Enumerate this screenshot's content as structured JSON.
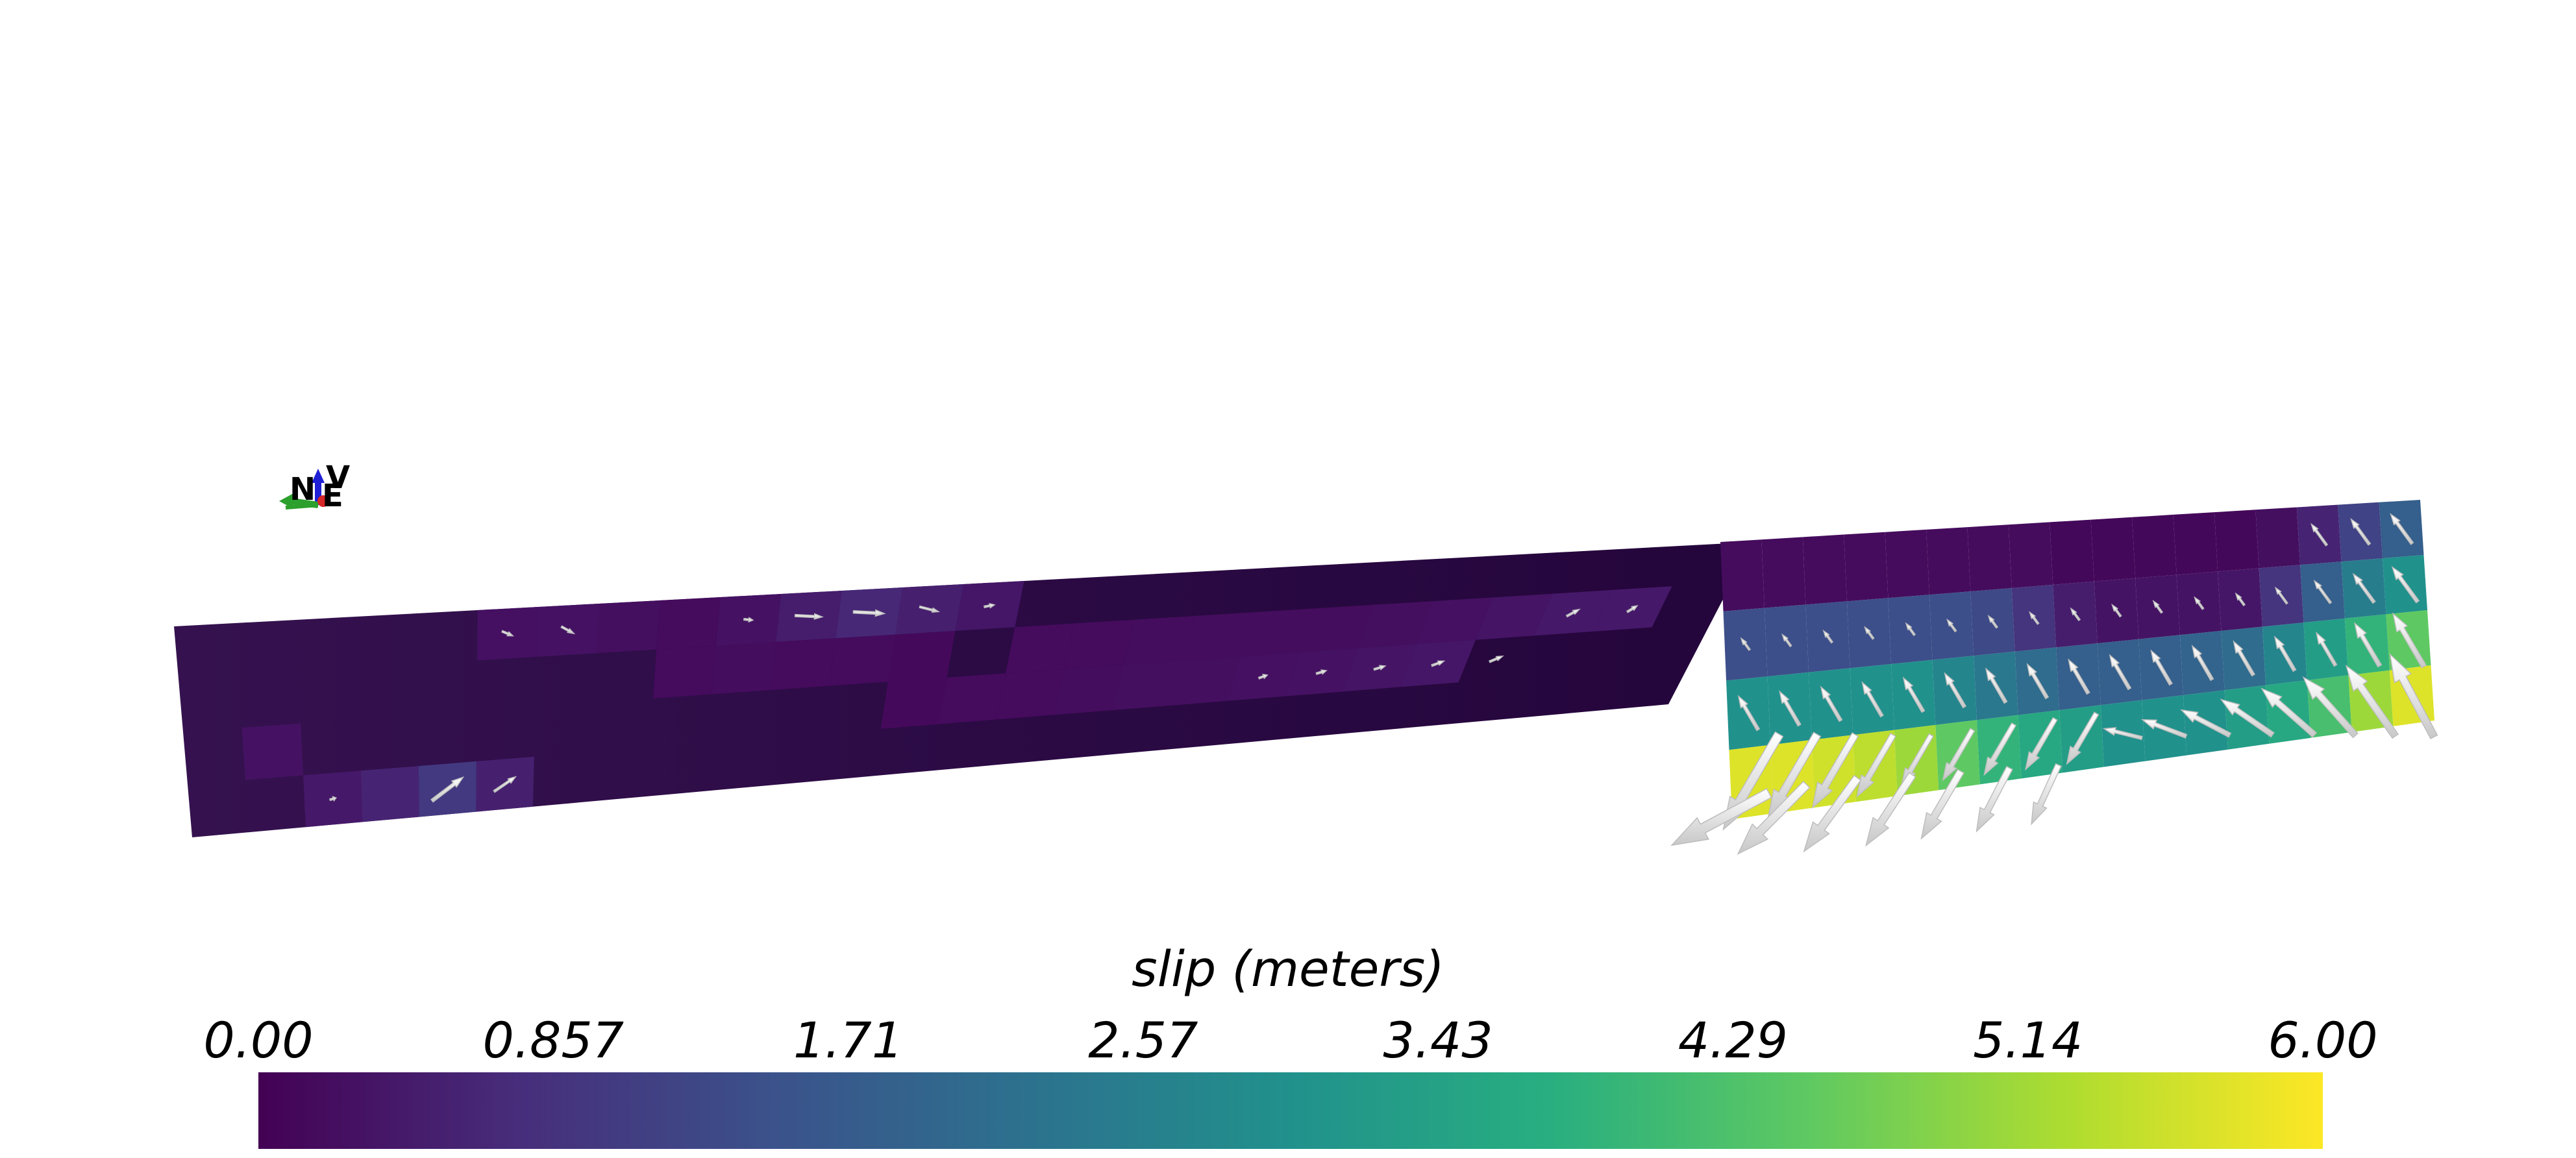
{
  "colorbar": {
    "title": "slip (meters)",
    "ticks": [
      "0.00",
      "0.857",
      "1.71",
      "2.57",
      "3.43",
      "4.29",
      "5.14",
      "6.00"
    ],
    "min": 0.0,
    "max": 6.0,
    "colormap": "viridis",
    "colors": [
      "#440154",
      "#472d7b",
      "#3b528b",
      "#2c728e",
      "#21918c",
      "#28ae80",
      "#5ec962",
      "#addc30",
      "#fde725"
    ]
  },
  "orientation_axes": {
    "labels": [
      "N",
      "E",
      "V"
    ],
    "colors": [
      "#2ca02c",
      "#d62728",
      "#1f1fd6"
    ]
  },
  "background": "#ffffff",
  "arrow_color": "#ffffff"
}
